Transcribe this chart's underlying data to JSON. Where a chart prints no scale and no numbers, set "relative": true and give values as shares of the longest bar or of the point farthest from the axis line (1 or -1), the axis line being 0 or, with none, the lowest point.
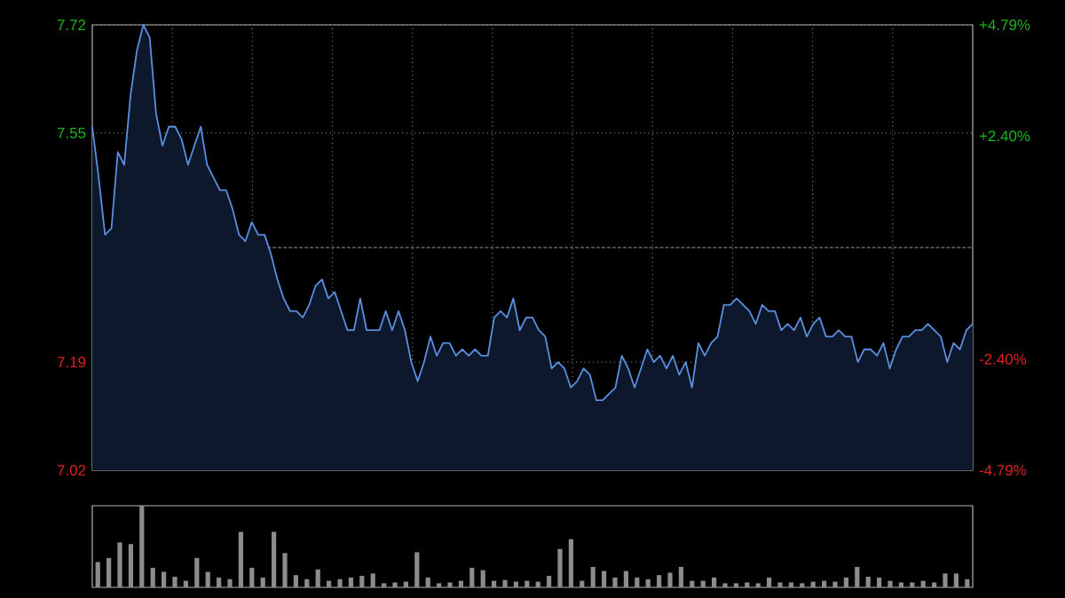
{
  "chart_data": [
    {
      "type": "area",
      "color": "#5b8fe0",
      "categories": [
        null,
        null,
        null,
        null,
        null,
        null,
        null,
        null,
        null,
        null,
        null,
        null,
        null,
        null,
        null,
        null,
        null,
        null,
        null,
        null,
        null,
        null,
        null,
        null,
        null,
        null,
        null,
        null,
        null,
        null,
        null,
        null,
        null,
        null,
        null,
        null,
        null,
        null,
        null,
        null,
        null,
        null,
        null,
        null,
        null,
        null,
        null,
        null,
        null,
        null,
        null,
        null,
        null,
        null,
        null,
        null,
        null,
        null,
        null,
        null,
        null,
        null,
        null,
        null,
        null,
        null,
        null,
        null,
        null,
        null,
        null,
        null,
        null,
        null,
        null,
        null,
        null,
        null,
        null,
        null,
        null,
        null,
        null,
        null,
        null,
        null,
        null,
        null,
        null,
        null,
        null,
        null,
        null,
        null,
        null,
        null,
        null,
        null,
        null,
        null,
        null,
        null,
        null,
        null,
        null,
        null,
        null,
        null,
        null,
        null,
        null,
        null,
        null,
        null,
        null,
        null,
        null,
        null,
        null,
        null,
        null,
        null,
        null,
        null,
        null,
        null,
        null,
        null,
        null,
        null,
        null,
        null,
        null,
        null,
        null,
        null,
        null,
        null,
        null
      ],
      "values": [
        7.56,
        7.48,
        7.39,
        7.4,
        7.52,
        7.5,
        7.61,
        7.68,
        7.72,
        7.7,
        7.58,
        7.53,
        7.56,
        7.56,
        7.54,
        7.5,
        7.53,
        7.56,
        7.5,
        7.48,
        7.46,
        7.46,
        7.43,
        7.39,
        7.38,
        7.41,
        7.39,
        7.39,
        7.36,
        7.32,
        7.29,
        7.27,
        7.27,
        7.26,
        7.28,
        7.31,
        7.32,
        7.29,
        7.3,
        7.27,
        7.24,
        7.24,
        7.29,
        7.24,
        7.24,
        7.24,
        7.27,
        7.24,
        7.27,
        7.24,
        7.19,
        7.16,
        7.19,
        7.23,
        7.2,
        7.22,
        7.22,
        7.2,
        7.21,
        7.2,
        7.21,
        7.2,
        7.2,
        7.26,
        7.27,
        7.26,
        7.29,
        7.24,
        7.26,
        7.26,
        7.24,
        7.23,
        7.18,
        7.19,
        7.18,
        7.15,
        7.16,
        7.18,
        7.17,
        7.13,
        7.13,
        7.14,
        7.15,
        7.2,
        7.18,
        7.15,
        7.18,
        7.21,
        7.19,
        7.2,
        7.18,
        7.2,
        7.17,
        7.19,
        7.15,
        7.22,
        7.2,
        7.22,
        7.23,
        7.28,
        7.28,
        7.29,
        7.28,
        7.27,
        7.25,
        7.28,
        7.27,
        7.27,
        7.24,
        7.25,
        7.24,
        7.26,
        7.23,
        7.25,
        7.26,
        7.23,
        7.23,
        7.24,
        7.23,
        7.23,
        7.19,
        7.21,
        7.21,
        7.2,
        7.22,
        7.18,
        7.21,
        7.23,
        7.23,
        7.24,
        7.24,
        7.25,
        7.24,
        7.23,
        7.19,
        7.22,
        7.21,
        7.24,
        7.25
      ],
      "ylim": [
        7.02,
        7.72
      ],
      "yticks": [
        7.02,
        7.19,
        7.55,
        7.72
      ],
      "y2lim": [
        -4.79,
        4.79
      ],
      "y2ticks": [
        {
          "value": -4.79,
          "label": "-4.79%"
        },
        {
          "value": -2.4,
          "label": "-2.40%"
        },
        {
          "value": 2.4,
          "label": "+2.40%"
        },
        {
          "value": 4.79,
          "label": "+4.79%"
        }
      ],
      "ref_lines": [
        {
          "axis": "y",
          "value": 7.37
        }
      ],
      "grid": true
    },
    {
      "type": "bar",
      "relative": true,
      "color": "#8c8c8c",
      "categories": [
        null,
        null,
        null,
        null,
        null,
        null,
        null,
        null,
        null,
        null,
        null,
        null,
        null,
        null,
        null,
        null,
        null,
        null,
        null,
        null,
        null,
        null,
        null,
        null,
        null,
        null,
        null,
        null,
        null,
        null,
        null,
        null,
        null,
        null,
        null,
        null,
        null,
        null,
        null,
        null,
        null,
        null,
        null,
        null,
        null,
        null,
        null,
        null,
        null,
        null,
        null,
        null,
        null,
        null,
        null,
        null,
        null,
        null,
        null,
        null,
        null,
        null,
        null,
        null,
        null,
        null,
        null,
        null,
        null,
        null,
        null,
        null,
        null,
        null,
        null,
        null,
        null,
        null,
        null,
        null
      ],
      "values": [
        0.31,
        0.36,
        0.55,
        0.53,
        1.0,
        0.24,
        0.19,
        0.13,
        0.08,
        0.36,
        0.19,
        0.12,
        0.1,
        0.68,
        0.24,
        0.12,
        0.68,
        0.42,
        0.15,
        0.1,
        0.22,
        0.08,
        0.1,
        0.12,
        0.14,
        0.17,
        0.05,
        0.06,
        0.07,
        0.43,
        0.12,
        0.05,
        0.06,
        0.08,
        0.24,
        0.21,
        0.08,
        0.09,
        0.07,
        0.08,
        0.07,
        0.14,
        0.47,
        0.59,
        0.08,
        0.25,
        0.2,
        0.12,
        0.2,
        0.12,
        0.1,
        0.15,
        0.18,
        0.25,
        0.08,
        0.08,
        0.12,
        0.05,
        0.05,
        0.06,
        0.05,
        0.12,
        0.06,
        0.06,
        0.05,
        0.07,
        0.08,
        0.07,
        0.12,
        0.25,
        0.13,
        0.12,
        0.08,
        0.06,
        0.06,
        0.08,
        0.06,
        0.17,
        0.17,
        0.1
      ]
    }
  ]
}
